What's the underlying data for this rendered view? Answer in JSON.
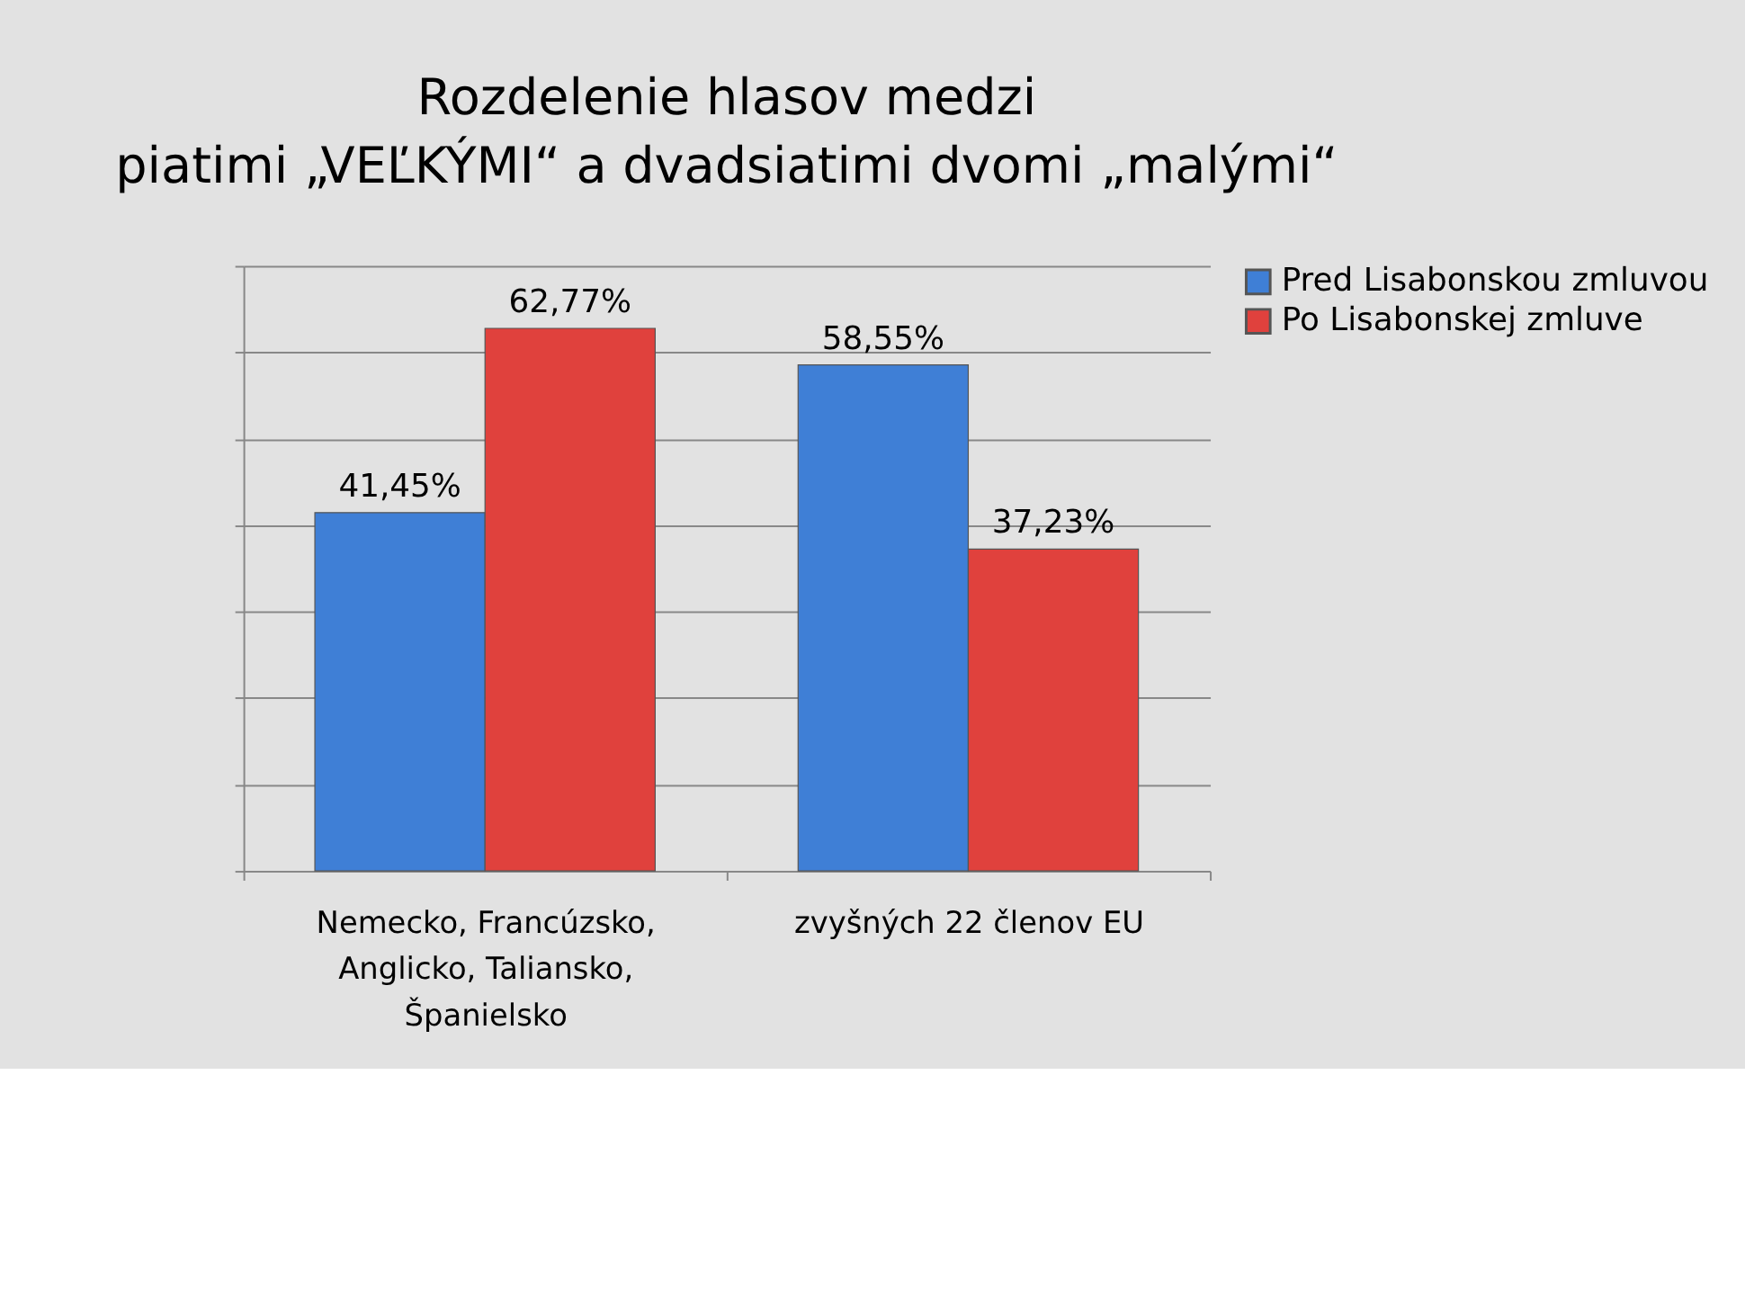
{
  "chart_data": {
    "type": "bar",
    "title": [
      "Rozdelenie hlasov medzi",
      "piatimi „VEĽKÝMI“ a dvadsiatimi dvomi „malými“"
    ],
    "categories": [
      "Nemecko, Francúzsko, Anglicko, Taliansko, Španielsko",
      "zvyšných 22 členov EU"
    ],
    "series": [
      {
        "name": "Pred Lisabonskou zmluvou",
        "color": "#3f7fd6",
        "values": [
          41.45,
          58.55
        ],
        "value_labels": [
          "41,45%",
          "58,55%"
        ]
      },
      {
        "name": "Po Lisabonskej zmluve",
        "color": "#e0413d",
        "values": [
          62.77,
          37.23
        ],
        "value_labels": [
          "62,77%",
          "37,23%"
        ]
      }
    ],
    "ylim": [
      0,
      70
    ],
    "yticks": [
      {
        "value": 0,
        "label": null
      },
      {
        "value": 10,
        "label": null
      },
      {
        "value": 20,
        "label": null
      },
      {
        "value": 30,
        "label": null
      },
      {
        "value": 40,
        "label": null
      },
      {
        "value": 50,
        "label": null
      },
      {
        "value": 60,
        "label": null
      },
      {
        "value": 70,
        "label": null
      }
    ],
    "grid": "y",
    "legend": "right",
    "tick_labels": "x"
  }
}
